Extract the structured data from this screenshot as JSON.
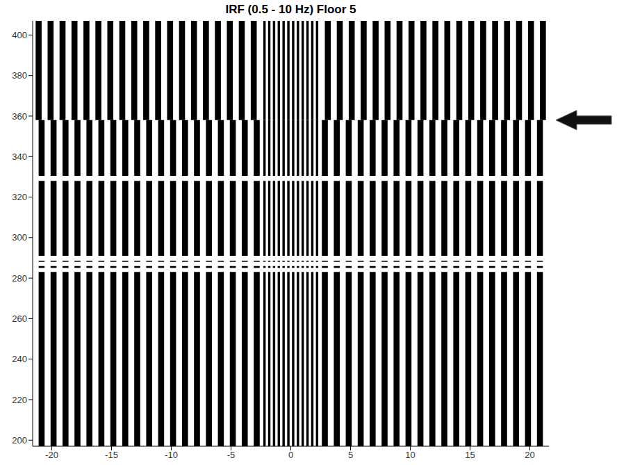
{
  "chart_data": {
    "type": "variable_density",
    "title": "IRF (0.5 - 10 Hz) Floor 5",
    "xlim": [
      -21.6,
      21.6
    ],
    "xticks": [
      -20,
      -15,
      -10,
      -5,
      0,
      5,
      10,
      15,
      20
    ],
    "ylim": [
      197,
      407
    ],
    "yticks": [
      200,
      220,
      240,
      260,
      280,
      300,
      320,
      340,
      360,
      380,
      400
    ],
    "color": "#000000",
    "bands": [
      {
        "y": [
          197,
          358
        ],
        "stripes": [
          [
            -21.1,
            -20.6
          ],
          [
            -20.1,
            -19.6
          ],
          [
            -19.1,
            -18.6
          ],
          [
            -18.1,
            -17.6
          ],
          [
            -17.1,
            -16.6
          ],
          [
            -16.1,
            -15.6
          ],
          [
            -15.1,
            -14.6
          ],
          [
            -14.1,
            -13.6
          ],
          [
            -13.1,
            -12.6
          ],
          [
            -12.1,
            -11.6
          ],
          [
            -11.1,
            -10.6
          ],
          [
            -10.1,
            -9.6
          ],
          [
            -9.1,
            -8.6
          ],
          [
            -8.1,
            -7.6
          ],
          [
            -7.1,
            -6.6
          ],
          [
            -6.1,
            -5.6
          ],
          [
            -5.1,
            -4.6
          ],
          [
            -4.1,
            -3.6
          ],
          [
            -3.1,
            -2.6
          ],
          [
            -2.3,
            -2.1
          ],
          [
            -1.9,
            -1.7
          ],
          [
            -1.5,
            -1.3
          ],
          [
            -1.1,
            -0.9
          ],
          [
            -0.7,
            -0.5
          ],
          [
            -0.3,
            -0.1
          ],
          [
            0.1,
            0.3
          ],
          [
            0.5,
            0.7
          ],
          [
            0.9,
            1.1
          ],
          [
            1.3,
            1.5
          ],
          [
            1.7,
            1.9
          ],
          [
            2.1,
            2.3
          ],
          [
            2.6,
            3.1
          ],
          [
            3.6,
            4.1
          ],
          [
            4.6,
            5.1
          ],
          [
            5.6,
            6.1
          ],
          [
            6.6,
            7.1
          ],
          [
            7.6,
            8.1
          ],
          [
            8.6,
            9.1
          ],
          [
            9.6,
            10.1
          ],
          [
            10.6,
            11.1
          ],
          [
            11.6,
            12.1
          ],
          [
            12.6,
            13.1
          ],
          [
            13.6,
            14.1
          ],
          [
            14.6,
            15.1
          ],
          [
            15.6,
            16.1
          ],
          [
            16.6,
            17.1
          ],
          [
            17.6,
            18.1
          ],
          [
            18.6,
            19.1
          ],
          [
            19.6,
            20.1
          ],
          [
            20.6,
            21.1
          ]
        ]
      },
      {
        "y": [
          358,
          407
        ],
        "stripes": [
          [
            -21.35,
            -20.85
          ],
          [
            -20.35,
            -19.85
          ],
          [
            -19.35,
            -18.85
          ],
          [
            -18.35,
            -17.85
          ],
          [
            -17.35,
            -16.85
          ],
          [
            -16.35,
            -15.85
          ],
          [
            -15.35,
            -14.85
          ],
          [
            -14.35,
            -13.85
          ],
          [
            -13.35,
            -12.85
          ],
          [
            -12.35,
            -11.85
          ],
          [
            -11.35,
            -10.85
          ],
          [
            -10.35,
            -9.85
          ],
          [
            -9.35,
            -8.85
          ],
          [
            -8.35,
            -7.85
          ],
          [
            -7.35,
            -6.85
          ],
          [
            -6.35,
            -5.85
          ],
          [
            -5.35,
            -4.85
          ],
          [
            -4.35,
            -3.85
          ],
          [
            -3.35,
            -2.85
          ],
          [
            -2.3,
            -2.1
          ],
          [
            -1.9,
            -1.7
          ],
          [
            -1.5,
            -1.3
          ],
          [
            -1.1,
            -0.9
          ],
          [
            -0.7,
            -0.5
          ],
          [
            -0.3,
            -0.1
          ],
          [
            0.1,
            0.3
          ],
          [
            0.5,
            0.7
          ],
          [
            0.9,
            1.1
          ],
          [
            1.3,
            1.5
          ],
          [
            1.7,
            1.9
          ],
          [
            2.1,
            2.3
          ],
          [
            2.85,
            3.35
          ],
          [
            3.85,
            4.35
          ],
          [
            4.85,
            5.35
          ],
          [
            5.85,
            6.35
          ],
          [
            6.85,
            7.35
          ],
          [
            7.85,
            8.35
          ],
          [
            8.85,
            9.35
          ],
          [
            9.85,
            10.35
          ],
          [
            10.85,
            11.35
          ],
          [
            11.85,
            12.35
          ],
          [
            12.85,
            13.35
          ],
          [
            13.85,
            14.35
          ],
          [
            14.85,
            15.35
          ],
          [
            15.85,
            16.35
          ],
          [
            16.85,
            17.35
          ],
          [
            17.85,
            18.35
          ],
          [
            18.85,
            19.35
          ],
          [
            19.85,
            20.35
          ],
          [
            20.85,
            21.35
          ]
        ]
      }
    ],
    "gaps": [
      [
        283,
        285
      ],
      [
        286,
        288
      ],
      [
        288.5,
        291
      ],
      [
        328,
        330.5
      ]
    ],
    "annotations": [
      {
        "type": "arrow",
        "y": 358
      }
    ]
  }
}
